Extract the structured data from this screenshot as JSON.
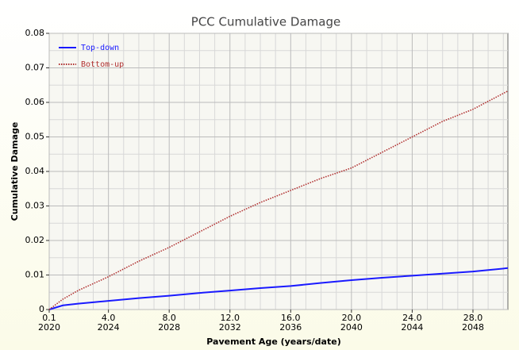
{
  "chart_data": {
    "type": "line",
    "title": "PCC Cumulative Damage",
    "x_label": "Pavement Age (years/date)",
    "y_label": "Cumulative Damage",
    "x": [
      0.1,
      1,
      2,
      4,
      6,
      8,
      10,
      12,
      14,
      16,
      18,
      20,
      22,
      24,
      26,
      28,
      30.3
    ],
    "series": [
      {
        "name": "Top-down",
        "color": "#1a1aff",
        "dash": false,
        "values": [
          0,
          0.0012,
          0.0017,
          0.0025,
          0.0033,
          0.004,
          0.0048,
          0.0055,
          0.0062,
          0.0068,
          0.0077,
          0.0085,
          0.0092,
          0.0098,
          0.0104,
          0.011,
          0.012
        ]
      },
      {
        "name": "Bottom-up",
        "color": "#b03030",
        "dash": true,
        "values": [
          0,
          0.003,
          0.0055,
          0.0095,
          0.014,
          0.018,
          0.0225,
          0.027,
          0.031,
          0.0345,
          0.038,
          0.041,
          0.0455,
          0.05,
          0.0545,
          0.058,
          0.0633
        ]
      }
    ],
    "xlim": [
      0.1,
      30.3
    ],
    "ylim": [
      0,
      0.08
    ],
    "xticks": [
      0.1,
      {
        "value": 4,
        "label": "4.0"
      },
      {
        "value": 8,
        "label": "8.0"
      },
      {
        "value": 12,
        "label": "12.0"
      },
      {
        "value": 16,
        "label": "16.0"
      },
      {
        "value": 20,
        "label": "20.0"
      },
      {
        "value": 24,
        "label": "24.0"
      },
      {
        "value": 28,
        "label": "28.0"
      }
    ],
    "x_date_labels": [
      "2020",
      "2024",
      "2028",
      "2032",
      "2036",
      "2040",
      "2044",
      "2048"
    ],
    "yticks": [
      0,
      0.01,
      0.02,
      0.03,
      0.04,
      0.05,
      0.06,
      0.07,
      0.08
    ],
    "minor_xticks": [
      1,
      2,
      3,
      5,
      6,
      7,
      9,
      10,
      11,
      13,
      14,
      15,
      17,
      18,
      19,
      21,
      22,
      23,
      25,
      26,
      27,
      29,
      30
    ],
    "minor_yticks": [
      0.005,
      0.015,
      0.025,
      0.035,
      0.045,
      0.055,
      0.065,
      0.075
    ],
    "grid": true,
    "legend": "top-left"
  }
}
